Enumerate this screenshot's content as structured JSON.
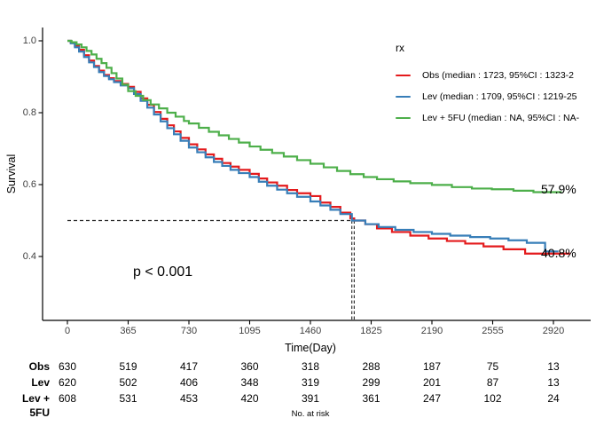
{
  "chart_data": {
    "type": "line",
    "subtype": "kaplan-meier-step-curves",
    "title": "",
    "xlabel": "Time(Day)",
    "ylabel": "Survival",
    "xlim": [
      0,
      2920
    ],
    "ylim": [
      0.4,
      1.0
    ],
    "grid": "off",
    "x_ticks": [
      0,
      365,
      730,
      1095,
      1460,
      1825,
      2190,
      2555,
      2920
    ],
    "y_ticks": [
      "1.0",
      "0.8",
      "0.6",
      "0.4"
    ],
    "y_tick_values": [
      1.0,
      0.8,
      0.6,
      0.4
    ],
    "legend": {
      "title": "rx",
      "position": "top-right",
      "entries": [
        {
          "label": "Obs (median : 1723, 95%CI : 1323-2",
          "color": "#e41a1c"
        },
        {
          "label": "Lev (median : 1709, 95%CI : 1219-25",
          "color": "#377eb8"
        },
        {
          "label": "Lev + 5FU (median : NA, 95%CI : NA-",
          "color": "#4daf4a"
        }
      ]
    },
    "annotations": [
      {
        "text": "p < 0.001"
      },
      {
        "text": "57.9%",
        "series": "Lev + 5FU",
        "color": "#000000"
      },
      {
        "text": "40.8%",
        "series": "Obs",
        "color": "#000000"
      }
    ],
    "median_lines": {
      "survival": 0.5,
      "x_values": [
        1709,
        1723
      ],
      "style": "dashed",
      "color": "#222222"
    },
    "series": [
      {
        "name": "Obs",
        "color": "#e41a1c",
        "points": [
          [
            0,
            1.0
          ],
          [
            20,
            0.995
          ],
          [
            45,
            0.985
          ],
          [
            70,
            0.975
          ],
          [
            100,
            0.96
          ],
          [
            130,
            0.945
          ],
          [
            160,
            0.93
          ],
          [
            190,
            0.917
          ],
          [
            220,
            0.905
          ],
          [
            250,
            0.896
          ],
          [
            280,
            0.888
          ],
          [
            320,
            0.88
          ],
          [
            365,
            0.872
          ],
          [
            400,
            0.858
          ],
          [
            440,
            0.84
          ],
          [
            480,
            0.822
          ],
          [
            520,
            0.802
          ],
          [
            560,
            0.783
          ],
          [
            600,
            0.765
          ],
          [
            640,
            0.748
          ],
          [
            680,
            0.73
          ],
          [
            730,
            0.712
          ],
          [
            780,
            0.698
          ],
          [
            830,
            0.684
          ],
          [
            880,
            0.672
          ],
          [
            930,
            0.66
          ],
          [
            980,
            0.65
          ],
          [
            1030,
            0.641
          ],
          [
            1095,
            0.63
          ],
          [
            1150,
            0.617
          ],
          [
            1200,
            0.606
          ],
          [
            1260,
            0.597
          ],
          [
            1320,
            0.585
          ],
          [
            1380,
            0.576
          ],
          [
            1460,
            0.568
          ],
          [
            1520,
            0.55
          ],
          [
            1580,
            0.538
          ],
          [
            1640,
            0.522
          ],
          [
            1700,
            0.506
          ],
          [
            1723,
            0.5
          ],
          [
            1790,
            0.49
          ],
          [
            1860,
            0.478
          ],
          [
            1950,
            0.468
          ],
          [
            2060,
            0.458
          ],
          [
            2170,
            0.45
          ],
          [
            2280,
            0.443
          ],
          [
            2390,
            0.436
          ],
          [
            2500,
            0.428
          ],
          [
            2620,
            0.42
          ],
          [
            2750,
            0.408
          ],
          [
            3020,
            0.408
          ]
        ]
      },
      {
        "name": "Lev",
        "color": "#377eb8",
        "points": [
          [
            0,
            1.0
          ],
          [
            20,
            0.993
          ],
          [
            45,
            0.982
          ],
          [
            70,
            0.97
          ],
          [
            100,
            0.955
          ],
          [
            130,
            0.94
          ],
          [
            160,
            0.927
          ],
          [
            190,
            0.913
          ],
          [
            220,
            0.902
          ],
          [
            250,
            0.893
          ],
          [
            280,
            0.885
          ],
          [
            320,
            0.876
          ],
          [
            365,
            0.868
          ],
          [
            400,
            0.852
          ],
          [
            440,
            0.833
          ],
          [
            480,
            0.814
          ],
          [
            520,
            0.795
          ],
          [
            560,
            0.776
          ],
          [
            600,
            0.757
          ],
          [
            640,
            0.74
          ],
          [
            680,
            0.722
          ],
          [
            730,
            0.703
          ],
          [
            780,
            0.69
          ],
          [
            830,
            0.676
          ],
          [
            880,
            0.663
          ],
          [
            930,
            0.652
          ],
          [
            980,
            0.641
          ],
          [
            1030,
            0.632
          ],
          [
            1095,
            0.621
          ],
          [
            1150,
            0.608
          ],
          [
            1200,
            0.597
          ],
          [
            1260,
            0.586
          ],
          [
            1320,
            0.576
          ],
          [
            1380,
            0.566
          ],
          [
            1460,
            0.553
          ],
          [
            1520,
            0.542
          ],
          [
            1580,
            0.53
          ],
          [
            1640,
            0.518
          ],
          [
            1709,
            0.5
          ],
          [
            1790,
            0.49
          ],
          [
            1870,
            0.482
          ],
          [
            1970,
            0.474
          ],
          [
            2080,
            0.468
          ],
          [
            2190,
            0.463
          ],
          [
            2300,
            0.458
          ],
          [
            2420,
            0.454
          ],
          [
            2540,
            0.45
          ],
          [
            2650,
            0.445
          ],
          [
            2760,
            0.438
          ],
          [
            2870,
            0.414
          ],
          [
            2950,
            0.414
          ]
        ]
      },
      {
        "name": "Lev + 5FU",
        "color": "#4daf4a",
        "points": [
          [
            0,
            1.0
          ],
          [
            25,
            0.996
          ],
          [
            55,
            0.99
          ],
          [
            85,
            0.982
          ],
          [
            115,
            0.972
          ],
          [
            145,
            0.962
          ],
          [
            175,
            0.95
          ],
          [
            205,
            0.938
          ],
          [
            235,
            0.925
          ],
          [
            265,
            0.91
          ],
          [
            295,
            0.895
          ],
          [
            330,
            0.878
          ],
          [
            365,
            0.86
          ],
          [
            410,
            0.847
          ],
          [
            455,
            0.835
          ],
          [
            500,
            0.823
          ],
          [
            550,
            0.812
          ],
          [
            600,
            0.8
          ],
          [
            650,
            0.789
          ],
          [
            700,
            0.777
          ],
          [
            730,
            0.77
          ],
          [
            790,
            0.758
          ],
          [
            850,
            0.747
          ],
          [
            910,
            0.737
          ],
          [
            970,
            0.727
          ],
          [
            1030,
            0.717
          ],
          [
            1095,
            0.706
          ],
          [
            1160,
            0.697
          ],
          [
            1230,
            0.688
          ],
          [
            1300,
            0.678
          ],
          [
            1380,
            0.668
          ],
          [
            1460,
            0.658
          ],
          [
            1540,
            0.648
          ],
          [
            1620,
            0.638
          ],
          [
            1700,
            0.629
          ],
          [
            1780,
            0.621
          ],
          [
            1860,
            0.615
          ],
          [
            1960,
            0.609
          ],
          [
            2060,
            0.604
          ],
          [
            2190,
            0.599
          ],
          [
            2310,
            0.593
          ],
          [
            2430,
            0.589
          ],
          [
            2550,
            0.587
          ],
          [
            2680,
            0.583
          ],
          [
            2800,
            0.579
          ],
          [
            2970,
            0.579
          ]
        ]
      }
    ]
  },
  "risk_table": {
    "title": "No. at risk",
    "time_points": [
      0,
      365,
      730,
      1095,
      1460,
      1825,
      2190,
      2555,
      2920
    ],
    "rows": [
      {
        "label": "Obs",
        "values": [
          630,
          519,
          417,
          360,
          318,
          288,
          187,
          75,
          13
        ]
      },
      {
        "label": "Lev",
        "values": [
          620,
          502,
          406,
          348,
          319,
          299,
          201,
          87,
          13
        ]
      },
      {
        "label": "Lev + 5FU",
        "values": [
          608,
          531,
          453,
          420,
          391,
          361,
          247,
          102,
          24
        ]
      }
    ]
  }
}
